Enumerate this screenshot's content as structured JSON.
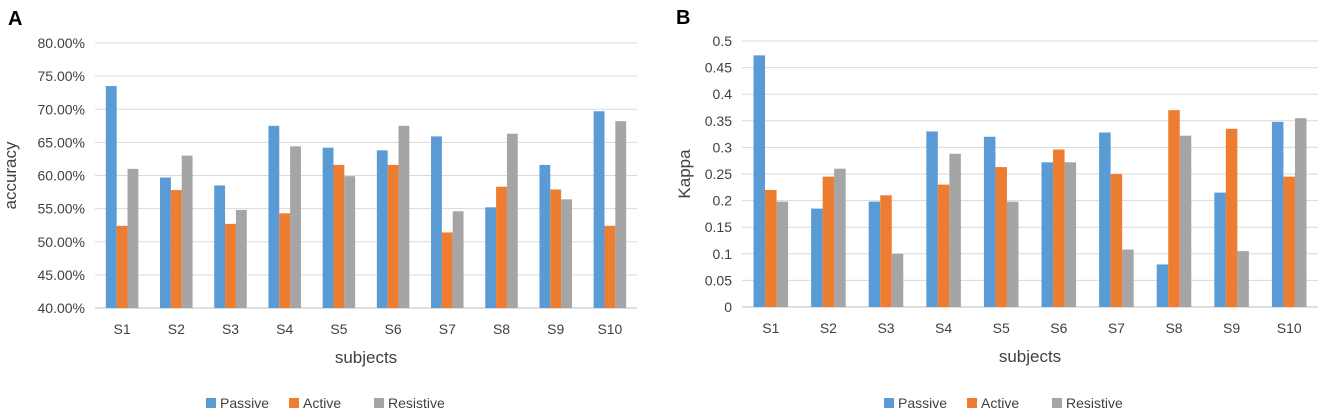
{
  "colors": {
    "Passive": "#5b9bd5",
    "Active": "#ed7d31",
    "Resistive": "#a5a5a5"
  },
  "chart_data": [
    {
      "panel": "A",
      "type": "bar",
      "xlabel": "subjects",
      "ylabel": "accuracy",
      "ylim": [
        0.4,
        0.8
      ],
      "ytick_step": 0.05,
      "ytick_labels": [
        "40.00%",
        "45.00%",
        "50.00%",
        "55.00%",
        "60.00%",
        "65.00%",
        "70.00%",
        "75.00%",
        "80.00%"
      ],
      "categories": [
        "S1",
        "S2",
        "S3",
        "S4",
        "S5",
        "S6",
        "S7",
        "S8",
        "S9",
        "S10"
      ],
      "series": [
        {
          "name": "Passive",
          "values": [
            0.735,
            0.597,
            0.585,
            0.675,
            0.642,
            0.638,
            0.659,
            0.552,
            0.616,
            0.697
          ]
        },
        {
          "name": "Active",
          "values": [
            0.524,
            0.578,
            0.527,
            0.543,
            0.616,
            0.616,
            0.514,
            0.583,
            0.579,
            0.524
          ]
        },
        {
          "name": "Resistive",
          "values": [
            0.61,
            0.63,
            0.548,
            0.644,
            0.599,
            0.675,
            0.546,
            0.663,
            0.564,
            0.682
          ]
        }
      ],
      "legend": [
        "Passive",
        "Active",
        "Resistive"
      ]
    },
    {
      "panel": "B",
      "type": "bar",
      "xlabel": "subjects",
      "ylabel": "Kappa",
      "ylim": [
        0,
        0.5
      ],
      "ytick_step": 0.05,
      "ytick_labels": [
        "0",
        "0.05",
        "0.1",
        "0.15",
        "0.2",
        "0.25",
        "0.3",
        "0.35",
        "0.4",
        "0.45",
        "0.5"
      ],
      "categories": [
        "S1",
        "S2",
        "S3",
        "S4",
        "S5",
        "S6",
        "S7",
        "S8",
        "S9",
        "S10"
      ],
      "series": [
        {
          "name": "Passive",
          "values": [
            0.473,
            0.185,
            0.198,
            0.33,
            0.32,
            0.272,
            0.328,
            0.08,
            0.215,
            0.348
          ]
        },
        {
          "name": "Active",
          "values": [
            0.22,
            0.245,
            0.21,
            0.23,
            0.263,
            0.296,
            0.25,
            0.37,
            0.335,
            0.245
          ]
        },
        {
          "name": "Resistive",
          "values": [
            0.198,
            0.26,
            0.1,
            0.288,
            0.198,
            0.272,
            0.108,
            0.322,
            0.105,
            0.355
          ]
        }
      ],
      "legend": [
        "Passive",
        "Active",
        "Resistive"
      ]
    }
  ]
}
